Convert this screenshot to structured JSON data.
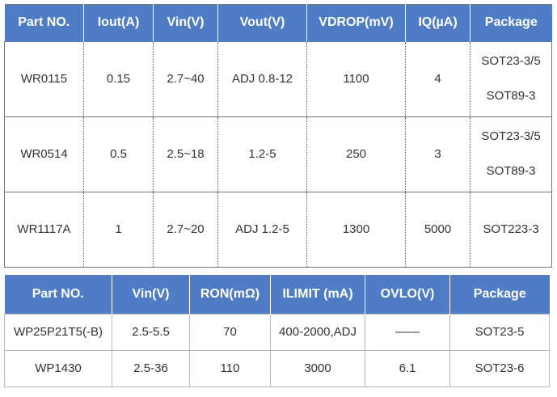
{
  "table1": {
    "headers": [
      "Part NO.",
      "Iout(A)",
      "Vin(V)",
      "Vout(V)",
      "VDROP(mV)",
      "IQ(µA)",
      "Package"
    ],
    "rows": [
      [
        "WR0115",
        "0.15",
        "2.7~40",
        "ADJ 0.8-12",
        "1100",
        "4",
        [
          "SOT23-3/5",
          "SOT89-3"
        ]
      ],
      [
        "WR0514",
        "0.5",
        "2.5~18",
        "1.2-5",
        "250",
        "3",
        [
          "SOT23-3/5",
          "SOT89-3"
        ]
      ],
      [
        "WR1117A",
        "1",
        "2.7~20",
        "ADJ 1.2-5",
        "1300",
        "5000",
        [
          "SOT223-3"
        ]
      ]
    ]
  },
  "table2": {
    "headers": [
      "Part NO.",
      "Vin(V)",
      "RON(mΩ)",
      "ILIMIT (mA)",
      "OVLO(V)",
      "Package"
    ],
    "rows": [
      [
        "WP25P21T5(-B)",
        "2.5-5.5",
        "70",
        "400-2000,ADJ",
        "——",
        "SOT23-5"
      ],
      [
        "WP1430",
        "2.5-36",
        "110",
        "3000",
        "6.1",
        "SOT23-6"
      ]
    ]
  },
  "colors": {
    "header_bg": "#4f7cc4",
    "header_text": "#ffffff",
    "border": "#777777"
  }
}
